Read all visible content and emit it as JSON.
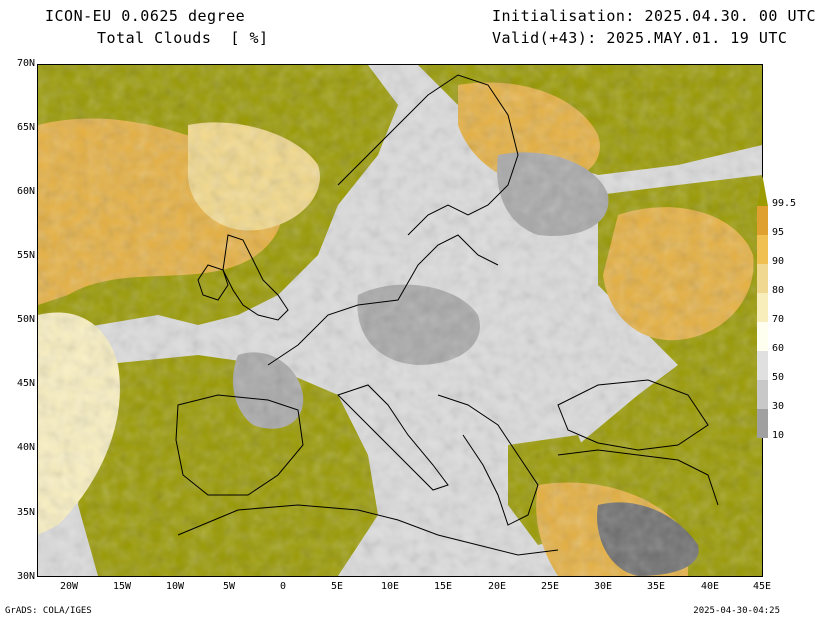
{
  "header": {
    "model": "ICON-EU 0.0625 degree",
    "variable": "Total Clouds  [ %]",
    "initialisation": "Initialisation: 2025.04.30. 00 UTC",
    "valid": "Valid(+43): 2025.MAY.01. 19 UTC"
  },
  "axes": {
    "lat_labels": [
      "70N",
      "65N",
      "60N",
      "55N",
      "50N",
      "45N",
      "40N",
      "35N",
      "30N"
    ],
    "lon_labels": [
      "20W",
      "15W",
      "10W",
      "5W",
      "0",
      "5E",
      "10E",
      "15E",
      "20E",
      "25E",
      "30E",
      "35E",
      "40E",
      "45E"
    ]
  },
  "colorbar": {
    "labels": [
      "99.5",
      "95",
      "90",
      "80",
      "70",
      "60",
      "50",
      "30",
      "10"
    ],
    "colors": [
      "#9c9c00",
      "#e0a030",
      "#f0c050",
      "#f0d890",
      "#f8eebb",
      "#fffff0",
      "#e0e0e0",
      "#c8c8c8",
      "#a0a0a0",
      "#777777",
      "#555555"
    ]
  },
  "map_colors": {
    "overcast": "#999900",
    "high": "#e6b040",
    "mid": "#f3d98a",
    "light": "#faf0c0",
    "clear": "#dcdcdc",
    "gray": "#a8a8a8",
    "darkgray": "#6e6e6e",
    "coast": "#000000"
  },
  "footer": {
    "left": "GrADS: COLA/IGES",
    "right": "2025-04-30-04:25"
  }
}
